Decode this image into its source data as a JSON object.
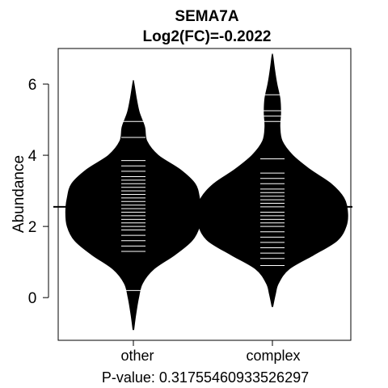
{
  "chart_data": {
    "type": "violin",
    "title": "SEMA7A",
    "subtitle": "Log2(FC)=-0.2022",
    "xlabel": "P-value: 0.31755460933526297",
    "ylabel": "Abundance",
    "categories": [
      "other",
      "complex"
    ],
    "yticks": [
      "0",
      "2",
      "4",
      "6"
    ],
    "ylim": [
      -1.2,
      7.0
    ],
    "reference_line": 2.55,
    "grid": false,
    "legend": "none",
    "colors": {
      "fill": "#000000",
      "lines": "#ffffff",
      "axis": "#000000"
    },
    "distributions": [
      {
        "category": "other",
        "min": -0.9,
        "max": 6.05,
        "profile": [
          [
            -0.9,
            0.005
          ],
          [
            -0.5,
            0.03
          ],
          [
            0.0,
            0.07
          ],
          [
            0.4,
            0.12
          ],
          [
            0.8,
            0.27
          ],
          [
            1.2,
            0.55
          ],
          [
            1.6,
            0.78
          ],
          [
            2.0,
            0.88
          ],
          [
            2.4,
            0.9
          ],
          [
            2.8,
            0.88
          ],
          [
            3.2,
            0.82
          ],
          [
            3.6,
            0.62
          ],
          [
            4.0,
            0.33
          ],
          [
            4.4,
            0.18
          ],
          [
            4.8,
            0.15
          ],
          [
            5.2,
            0.08
          ],
          [
            5.6,
            0.04
          ],
          [
            6.05,
            0.005
          ]
        ],
        "observations": [
          0.2,
          1.3,
          1.45,
          1.6,
          1.75,
          1.9,
          2.0,
          2.1,
          2.2,
          2.3,
          2.4,
          2.5,
          2.6,
          2.7,
          2.8,
          2.9,
          3.0,
          3.1,
          3.2,
          3.3,
          3.4,
          3.55,
          3.7,
          3.85,
          4.5,
          4.95
        ]
      },
      {
        "category": "complex",
        "min": -0.25,
        "max": 6.8,
        "profile": [
          [
            -0.25,
            0.005
          ],
          [
            0.1,
            0.04
          ],
          [
            0.4,
            0.08
          ],
          [
            0.8,
            0.22
          ],
          [
            1.2,
            0.55
          ],
          [
            1.6,
            0.86
          ],
          [
            2.0,
            0.98
          ],
          [
            2.4,
            1.0
          ],
          [
            2.8,
            0.95
          ],
          [
            3.2,
            0.78
          ],
          [
            3.6,
            0.5
          ],
          [
            4.0,
            0.27
          ],
          [
            4.4,
            0.13
          ],
          [
            4.8,
            0.1
          ],
          [
            5.2,
            0.11
          ],
          [
            5.6,
            0.1
          ],
          [
            6.0,
            0.06
          ],
          [
            6.4,
            0.03
          ],
          [
            6.8,
            0.005
          ]
        ],
        "observations": [
          0.9,
          1.1,
          1.25,
          1.4,
          1.55,
          1.7,
          1.85,
          2.0,
          2.1,
          2.2,
          2.3,
          2.4,
          2.55,
          2.65,
          2.75,
          2.85,
          2.95,
          3.05,
          3.2,
          3.35,
          3.5,
          3.9,
          4.95,
          5.1,
          5.25,
          5.7
        ]
      }
    ]
  }
}
